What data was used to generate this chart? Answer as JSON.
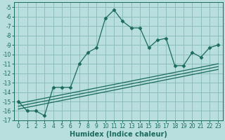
{
  "xlabel": "Humidex (Indice chaleur)",
  "bg_color": "#b8dede",
  "grid_color": "#8cbcbc",
  "line_color": "#1a6b5a",
  "xlim": [
    -0.5,
    23.5
  ],
  "ylim": [
    -17.0,
    -4.5
  ],
  "xticks": [
    0,
    1,
    2,
    3,
    4,
    5,
    6,
    7,
    8,
    9,
    10,
    11,
    12,
    13,
    14,
    15,
    16,
    17,
    18,
    19,
    20,
    21,
    22,
    23
  ],
  "yticks": [
    -5,
    -6,
    -7,
    -8,
    -9,
    -10,
    -11,
    -12,
    -13,
    -14,
    -15,
    -16,
    -17
  ],
  "line1_x": [
    0,
    1,
    2,
    3,
    4,
    5,
    6,
    7,
    8,
    9,
    10,
    11,
    12,
    13,
    14,
    15,
    16,
    17,
    18,
    19,
    20,
    21,
    22,
    23
  ],
  "line1_y": [
    -15.0,
    -16.0,
    -16.0,
    -16.5,
    -13.5,
    -13.5,
    -13.5,
    -11.0,
    -9.8,
    -9.3,
    -6.2,
    -5.3,
    -6.5,
    -7.2,
    -7.2,
    -9.3,
    -8.5,
    -8.3,
    -11.2,
    -11.2,
    -9.8,
    -10.3,
    -9.3,
    -9.0
  ],
  "line2_x": [
    0,
    23
  ],
  "line2_y": [
    -15.2,
    -11.0
  ],
  "line3_x": [
    0,
    23
  ],
  "line3_y": [
    -15.5,
    -11.3
  ],
  "line4_x": [
    0,
    23
  ],
  "line4_y": [
    -15.8,
    -11.6
  ],
  "tick_fontsize": 5.5,
  "xlabel_fontsize": 7
}
